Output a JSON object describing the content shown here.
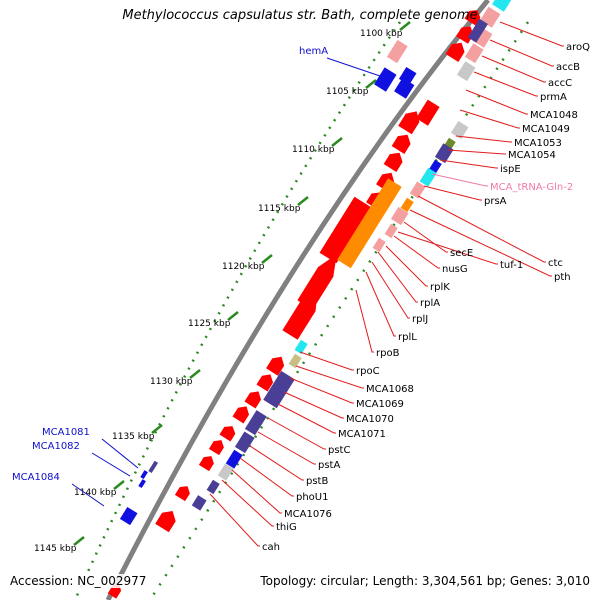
{
  "title": "Methylococcus capsulatus str. Bath, complete genome",
  "footer": {
    "accession": "Accession: NC_002977",
    "summary": "Topology: circular; Length: 3,304,561 bp; Genes: 3,010"
  },
  "colors": {
    "backbone": "#808080",
    "tick": "#2a8a1f",
    "label_red": "#e31b1b",
    "label_blue": "#1010cc",
    "label_pink": "#f07aa8",
    "cds_red": "#ff0000",
    "cds_light": "#f4a0a0",
    "cds_blue": "#1010e0",
    "cds_navy": "#4a3f96",
    "cds_orange": "#ff8c00",
    "cds_gray": "#c8c8c8",
    "cds_cyan": "#22e6f0",
    "cds_olive": "#c8bf85",
    "cds_green": "#6b8a2a"
  },
  "kbp_ticks": [
    "1100 kbp",
    "1105 kbp",
    "1110 kbp",
    "1115 kbp",
    "1120 kbp",
    "1125 kbp",
    "1130 kbp",
    "1135 kbp",
    "1140 kbp",
    "1145 kbp"
  ],
  "right_labels": [
    "aroQ",
    "accB",
    "accC",
    "prmA",
    "MCA1048",
    "MCA1049",
    "MCA1053",
    "MCA1054",
    "ispE",
    "MCA_tRNA-Gln-2",
    "prsA",
    "ctc",
    "pth",
    "secE",
    "tuf-1",
    "nusG",
    "rplK",
    "rplA",
    "rplJ",
    "rplL",
    "rpoB",
    "rpoC",
    "MCA1068",
    "MCA1069",
    "MCA1070",
    "MCA1071",
    "pstC",
    "pstA",
    "pstB",
    "phoU1",
    "MCA1076",
    "thiG",
    "cah"
  ],
  "left_labels": [
    "hemA",
    "MCA1081",
    "MCA1082",
    "MCA1084"
  ]
}
